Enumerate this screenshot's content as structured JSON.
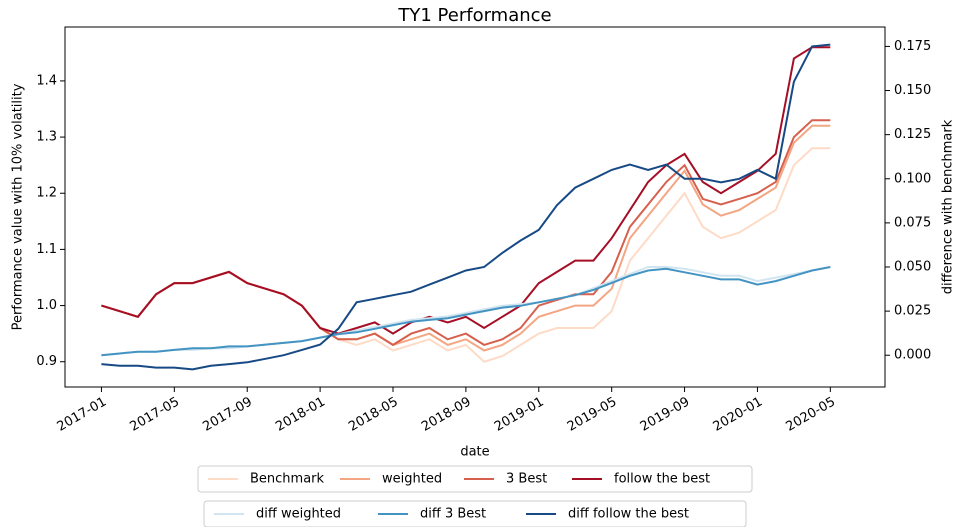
{
  "chart_data": {
    "type": "line",
    "title": "TY1 Performance",
    "xlabel": "date",
    "ylabel": "Performance value with 10% volatility",
    "y2label": "difference with benchmark",
    "x": [
      "2017-01",
      "2017-02",
      "2017-03",
      "2017-04",
      "2017-05",
      "2017-06",
      "2017-07",
      "2017-08",
      "2017-09",
      "2017-10",
      "2017-11",
      "2017-12",
      "2018-01",
      "2018-02",
      "2018-03",
      "2018-04",
      "2018-05",
      "2018-06",
      "2018-07",
      "2018-08",
      "2018-09",
      "2018-10",
      "2018-11",
      "2018-12",
      "2019-01",
      "2019-02",
      "2019-03",
      "2019-04",
      "2019-05",
      "2019-06",
      "2019-07",
      "2019-08",
      "2019-09",
      "2019-10",
      "2019-11",
      "2019-12",
      "2020-01",
      "2020-02",
      "2020-03",
      "2020-04",
      "2020-05"
    ],
    "xlim": [
      "2016-11",
      "2020-08"
    ],
    "xticks": [
      "2017-01",
      "2017-05",
      "2017-09",
      "2018-01",
      "2018-05",
      "2018-09",
      "2019-01",
      "2019-05",
      "2019-09",
      "2020-01",
      "2020-05"
    ],
    "ylim": [
      0.855,
      1.496
    ],
    "yticks": [
      0.9,
      {
        "value": 1,
        "label": "1.0"
      },
      1.1,
      1.2,
      1.3,
      1.4
    ],
    "y2lim": [
      -0.018,
      0.186
    ],
    "y2ticks": [
      {
        "value": 0,
        "label": "0.000"
      },
      0.025,
      {
        "value": 0.05,
        "label": "0.050"
      },
      0.075,
      {
        "value": 0.1,
        "label": "0.100"
      },
      0.125,
      {
        "value": 0.15,
        "label": "0.150"
      },
      0.175
    ],
    "series": [
      {
        "name": "Benchmark",
        "color": "#fddbc7",
        "legend": 1,
        "values": [
          1.0,
          0.99,
          0.98,
          1.02,
          1.04,
          1.04,
          1.05,
          1.06,
          1.04,
          1.03,
          1.02,
          1.0,
          0.96,
          0.94,
          0.93,
          0.94,
          0.92,
          0.93,
          0.94,
          0.92,
          0.93,
          0.9,
          0.91,
          0.93,
          0.95,
          0.96,
          0.96,
          0.96,
          0.99,
          1.08,
          1.12,
          1.16,
          1.2,
          1.14,
          1.12,
          1.13,
          1.15,
          1.17,
          1.25,
          1.28,
          1.28
        ]
      },
      {
        "name": "weighted",
        "color": "#f4a582",
        "legend": 1,
        "values": [
          1.0,
          0.99,
          0.98,
          1.02,
          1.04,
          1.04,
          1.05,
          1.06,
          1.04,
          1.03,
          1.02,
          1.0,
          0.96,
          0.94,
          0.94,
          0.95,
          0.93,
          0.94,
          0.95,
          0.93,
          0.94,
          0.92,
          0.93,
          0.95,
          0.98,
          0.99,
          1.0,
          1.0,
          1.03,
          1.12,
          1.16,
          1.2,
          1.24,
          1.18,
          1.16,
          1.17,
          1.19,
          1.21,
          1.29,
          1.32,
          1.32
        ]
      },
      {
        "name": "3 Best",
        "color": "#d6604d",
        "legend": 1,
        "values": [
          1.0,
          0.99,
          0.98,
          1.02,
          1.04,
          1.04,
          1.05,
          1.06,
          1.04,
          1.03,
          1.02,
          1.0,
          0.96,
          0.94,
          0.94,
          0.95,
          0.93,
          0.95,
          0.96,
          0.94,
          0.95,
          0.93,
          0.94,
          0.96,
          1.0,
          1.01,
          1.02,
          1.02,
          1.06,
          1.14,
          1.18,
          1.22,
          1.25,
          1.19,
          1.18,
          1.19,
          1.2,
          1.22,
          1.3,
          1.33,
          1.33
        ]
      },
      {
        "name": "follow the best",
        "color": "#a50f26",
        "legend": 1,
        "values": [
          1.0,
          0.99,
          0.98,
          1.02,
          1.04,
          1.04,
          1.05,
          1.06,
          1.04,
          1.03,
          1.02,
          1.0,
          0.96,
          0.95,
          0.96,
          0.97,
          0.95,
          0.97,
          0.98,
          0.97,
          0.98,
          0.96,
          0.98,
          1.0,
          1.04,
          1.06,
          1.08,
          1.08,
          1.12,
          1.17,
          1.22,
          1.25,
          1.27,
          1.22,
          1.2,
          1.22,
          1.24,
          1.27,
          1.44,
          1.46,
          1.46
        ]
      },
      {
        "name": "diff weighted",
        "color": "#d1e5f0",
        "axis": "y2",
        "legend": 2,
        "values": [
          0.0,
          0.001,
          0.002,
          0.002,
          0.003,
          0.003,
          0.004,
          0.004,
          0.005,
          0.006,
          0.007,
          0.008,
          0.01,
          0.012,
          0.014,
          0.016,
          0.018,
          0.02,
          0.021,
          0.022,
          0.024,
          0.026,
          0.028,
          0.029,
          0.03,
          0.032,
          0.034,
          0.038,
          0.042,
          0.046,
          0.05,
          0.05,
          0.049,
          0.047,
          0.045,
          0.045,
          0.042,
          0.044,
          0.046,
          0.048,
          0.05
        ]
      },
      {
        "name": "diff 3 Best",
        "color": "#4393c3",
        "axis": "y2",
        "legend": 2,
        "values": [
          0.0,
          0.001,
          0.002,
          0.002,
          0.003,
          0.004,
          0.004,
          0.005,
          0.005,
          0.006,
          0.007,
          0.008,
          0.01,
          0.012,
          0.013,
          0.015,
          0.017,
          0.019,
          0.02,
          0.021,
          0.023,
          0.025,
          0.027,
          0.028,
          0.03,
          0.032,
          0.034,
          0.037,
          0.041,
          0.045,
          0.048,
          0.049,
          0.047,
          0.045,
          0.043,
          0.043,
          0.04,
          0.042,
          0.045,
          0.048,
          0.05
        ]
      },
      {
        "name": "diff follow the best",
        "color": "#174a85",
        "axis": "y2",
        "legend": 2,
        "values": [
          -0.005,
          -0.006,
          -0.006,
          -0.007,
          -0.007,
          -0.008,
          -0.006,
          -0.005,
          -0.004,
          -0.002,
          0.0,
          0.003,
          0.006,
          0.015,
          0.03,
          0.032,
          0.034,
          0.036,
          0.04,
          0.044,
          0.048,
          0.05,
          0.058,
          0.065,
          0.071,
          0.085,
          0.095,
          0.1,
          0.105,
          0.108,
          0.105,
          0.108,
          0.1,
          0.1,
          0.098,
          0.1,
          0.105,
          0.1,
          0.155,
          0.175,
          0.176
        ]
      }
    ]
  }
}
